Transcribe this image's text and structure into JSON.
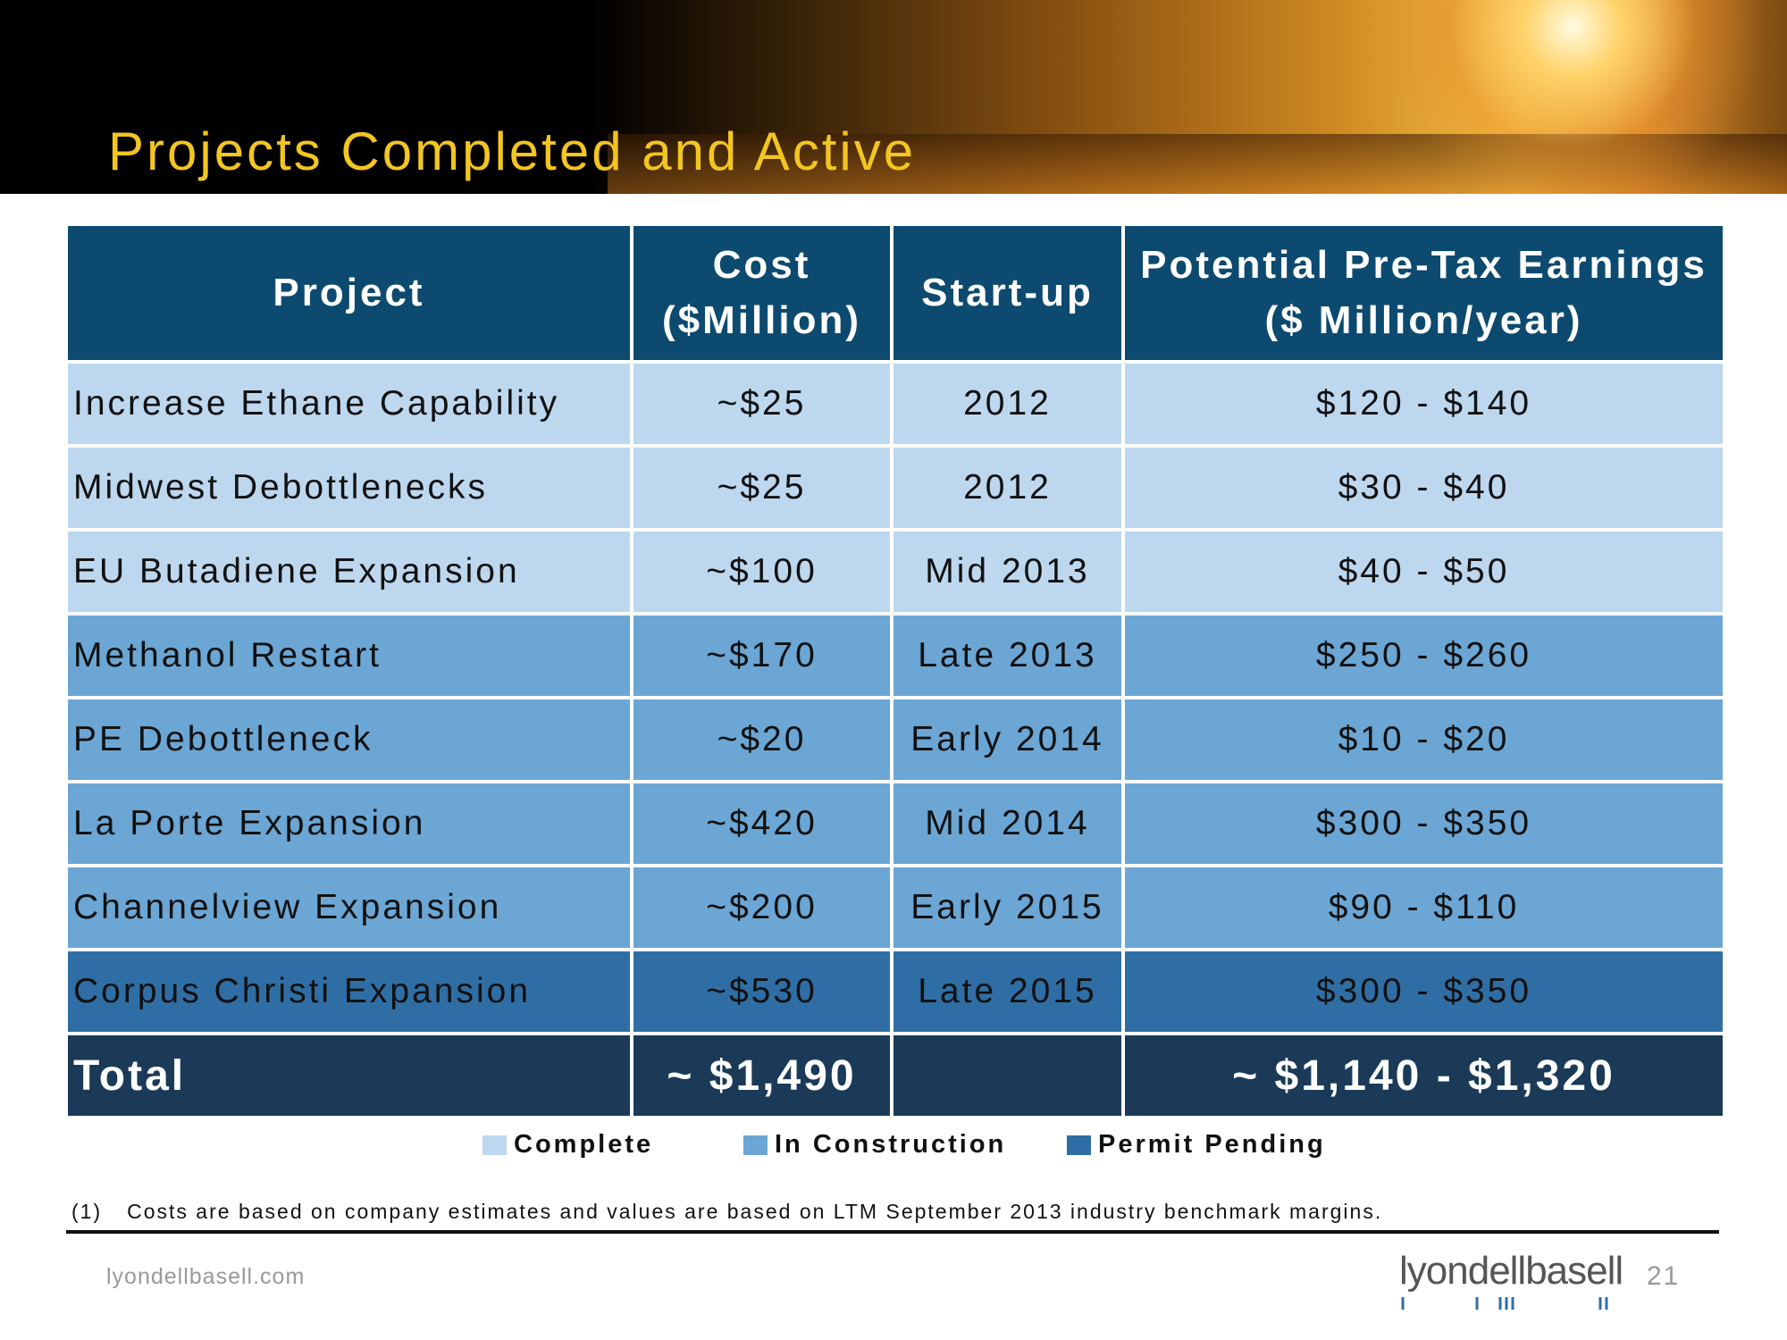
{
  "header": {
    "title": "Projects Completed and Active"
  },
  "table": {
    "columns": [
      "Project",
      "Cost\n($Million)",
      "Start-up",
      "Potential Pre-Tax Earnings\n($ Million/year)"
    ],
    "rows": [
      [
        "Increase Ethane Capability",
        "~$25",
        "2012",
        "$120 - $140"
      ],
      [
        "Midwest Debottlenecks",
        "~$25",
        "2012",
        "$30 - $40"
      ],
      [
        "EU Butadiene Expansion",
        "~$100",
        "Mid 2013",
        "$40 - $50"
      ],
      [
        "Methanol Restart",
        "~$170",
        "Late 2013",
        "$250 - $260"
      ],
      [
        "PE Debottleneck",
        "~$20",
        "Early 2014",
        "$10 - $20"
      ],
      [
        "La Porte Expansion",
        "~$420",
        "Mid 2014",
        "$300 - $350"
      ],
      [
        "Channelview Expansion",
        "~$200",
        "Early 2015",
        "$90 - $110"
      ],
      [
        "Corpus Christi Expansion",
        "~$530",
        "Late 2015",
        "$300 - $350"
      ]
    ],
    "total": [
      "Total",
      "~ $1,490",
      "",
      "~ $1,140 - $1,320"
    ]
  },
  "legend": [
    {
      "label": "Complete",
      "color": "#bdd7ee"
    },
    {
      "label": "In Construction",
      "color": "#6ba6d4"
    },
    {
      "label": "Permit Pending",
      "color": "#2f6ea5"
    }
  ],
  "footnote": {
    "marker": "(1)",
    "text": "Costs are based on company estimates and values are based on LTM September 2013 industry benchmark margins."
  },
  "footer": {
    "url": "lyondellbasell.com",
    "logo": "lyondellbasell",
    "page": "21"
  }
}
